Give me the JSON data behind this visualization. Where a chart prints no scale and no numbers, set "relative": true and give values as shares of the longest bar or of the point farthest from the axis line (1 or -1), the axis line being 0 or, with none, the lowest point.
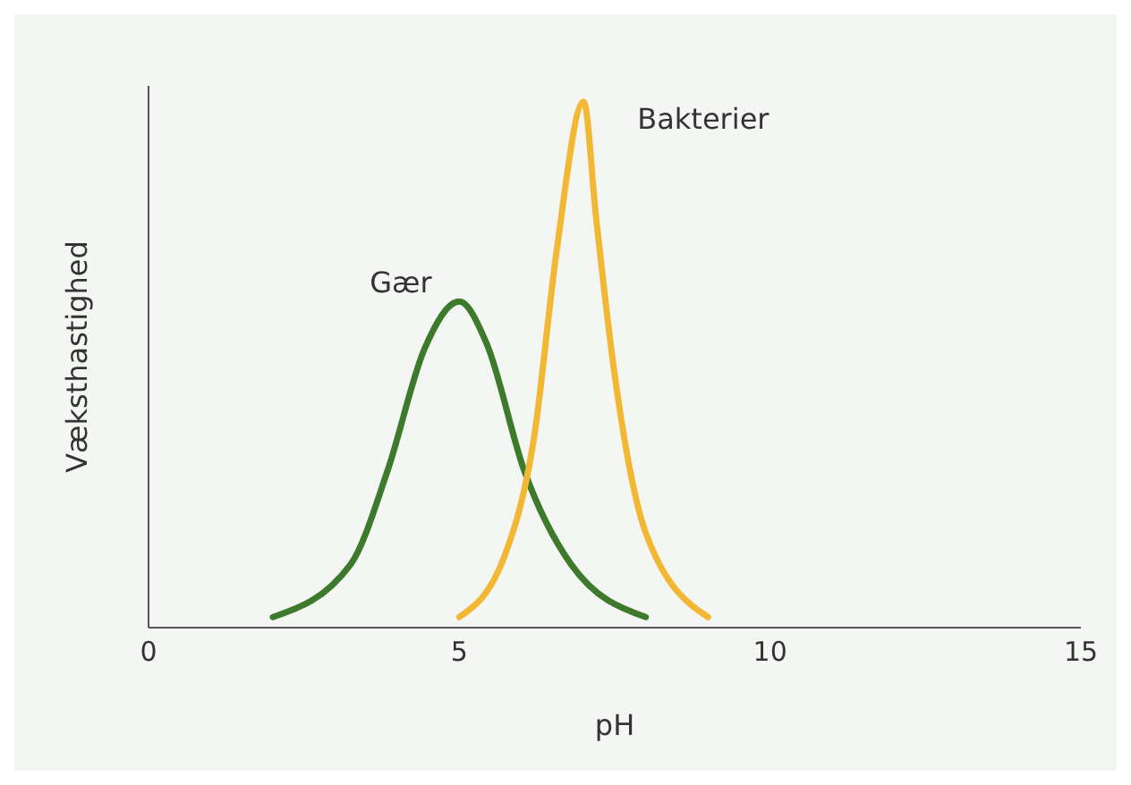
{
  "chart_data": {
    "type": "line",
    "relative": true,
    "xlabel": "pH",
    "ylabel": "Væksthastighed",
    "xlim": [
      0,
      15
    ],
    "xticks": [
      0,
      5,
      10,
      15
    ],
    "marker": "none",
    "line_style": "solid",
    "series": [
      {
        "name": "Gær",
        "color": "#3d7a2c",
        "x": [
          2,
          3.25,
          3.85,
          4.44,
          5,
          5.44,
          6.04,
          6.8,
          8
        ],
        "values": [
          0.02,
          0.12,
          0.3,
          0.53,
          0.62,
          0.54,
          0.3,
          0.12,
          0.02
        ]
      },
      {
        "name": "Bakterier",
        "color": "#f2b833",
        "x": [
          5,
          5.74,
          6.2,
          6.57,
          7,
          7.2,
          7.5,
          8,
          9
        ],
        "values": [
          0.02,
          0.14,
          0.36,
          0.72,
          1,
          0.78,
          0.48,
          0.18,
          0.02
        ]
      }
    ]
  }
}
